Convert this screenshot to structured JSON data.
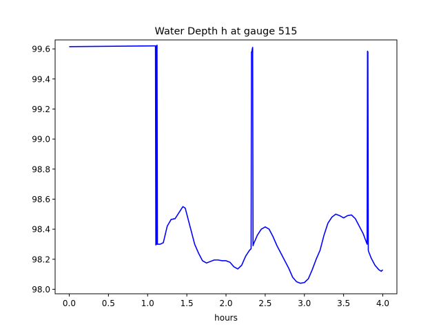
{
  "chart_data": {
    "type": "line",
    "title": "Water Depth h at gauge 515",
    "xlabel": "hours",
    "ylabel": "",
    "xlim": [
      -0.18,
      4.18
    ],
    "ylim": [
      97.97,
      99.66
    ],
    "xticks": [
      0.0,
      0.5,
      1.0,
      1.5,
      2.0,
      2.5,
      3.0,
      3.5,
      4.0
    ],
    "xtick_labels": [
      "0.0",
      "0.5",
      "1.0",
      "1.5",
      "2.0",
      "2.5",
      "3.0",
      "3.5",
      "4.0"
    ],
    "yticks": [
      98.0,
      98.2,
      98.4,
      98.6,
      98.8,
      99.0,
      99.2,
      99.4,
      99.6
    ],
    "ytick_labels": [
      "98.0",
      "98.2",
      "98.4",
      "98.6",
      "98.8",
      "99.0",
      "99.2",
      "99.4",
      "99.6"
    ],
    "grid": false,
    "legend": "none",
    "colors": {
      "line": "#0000ff",
      "axes": "#000000",
      "background": "#ffffff"
    },
    "series": [
      {
        "name": "",
        "x": [
          0.0,
          1.07,
          1.08,
          1.085,
          1.09,
          1.1,
          1.105,
          1.11,
          1.115,
          1.12,
          1.125,
          1.13,
          1.16,
          1.2,
          1.25,
          1.3,
          1.35,
          1.4,
          1.45,
          1.48,
          1.5,
          1.55,
          1.6,
          1.65,
          1.7,
          1.75,
          1.8,
          1.85,
          1.9,
          1.95,
          2.0,
          2.05,
          2.1,
          2.15,
          2.2,
          2.25,
          2.3,
          2.32,
          2.325,
          2.33,
          2.335,
          2.34,
          2.345,
          2.35,
          2.4,
          2.45,
          2.5,
          2.55,
          2.6,
          2.65,
          2.7,
          2.75,
          2.8,
          2.85,
          2.9,
          2.95,
          3.0,
          3.05,
          3.1,
          3.15,
          3.2,
          3.25,
          3.3,
          3.35,
          3.4,
          3.45,
          3.5,
          3.55,
          3.6,
          3.65,
          3.7,
          3.75,
          3.8,
          3.805,
          3.81,
          3.815,
          3.82,
          3.85,
          3.9,
          3.95,
          3.98,
          4.0
        ],
        "y": [
          99.615,
          99.62,
          99.62,
          99.62,
          99.62,
          99.62,
          98.295,
          99.62,
          98.3,
          99.625,
          98.3,
          98.3,
          98.3,
          98.31,
          98.42,
          98.465,
          98.47,
          98.51,
          98.55,
          98.54,
          98.5,
          98.4,
          98.3,
          98.24,
          98.19,
          98.175,
          98.185,
          98.195,
          98.195,
          98.19,
          98.19,
          98.18,
          98.15,
          98.135,
          98.16,
          98.22,
          98.26,
          98.27,
          99.58,
          99.58,
          99.6,
          99.61,
          98.29,
          98.3,
          98.36,
          98.4,
          98.415,
          98.4,
          98.35,
          98.29,
          98.24,
          98.19,
          98.14,
          98.08,
          98.05,
          98.04,
          98.045,
          98.07,
          98.13,
          98.2,
          98.26,
          98.36,
          98.44,
          98.48,
          98.5,
          98.49,
          98.475,
          98.49,
          98.495,
          98.47,
          98.42,
          98.37,
          98.3,
          99.585,
          99.58,
          98.26,
          98.25,
          98.21,
          98.16,
          98.13,
          98.12,
          98.13
        ]
      }
    ]
  }
}
